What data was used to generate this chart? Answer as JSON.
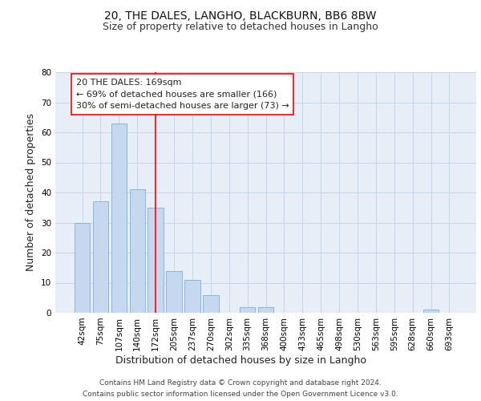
{
  "title_line1": "20, THE DALES, LANGHO, BLACKBURN, BB6 8BW",
  "title_line2": "Size of property relative to detached houses in Langho",
  "xlabel": "Distribution of detached houses by size in Langho",
  "ylabel": "Number of detached properties",
  "categories": [
    "42sqm",
    "75sqm",
    "107sqm",
    "140sqm",
    "172sqm",
    "205sqm",
    "237sqm",
    "270sqm",
    "302sqm",
    "335sqm",
    "368sqm",
    "400sqm",
    "433sqm",
    "465sqm",
    "498sqm",
    "530sqm",
    "563sqm",
    "595sqm",
    "628sqm",
    "660sqm",
    "693sqm"
  ],
  "values": [
    30,
    37,
    63,
    41,
    35,
    14,
    11,
    6,
    0,
    2,
    2,
    0,
    0,
    0,
    0,
    0,
    0,
    0,
    0,
    1,
    0
  ],
  "bar_color": "#c5d8f0",
  "bar_edge_color": "#7bafd4",
  "bar_width": 0.85,
  "ylim": [
    0,
    80
  ],
  "yticks": [
    0,
    10,
    20,
    30,
    40,
    50,
    60,
    70,
    80
  ],
  "grid_color": "#c8d4e8",
  "background_color": "#e8eef8",
  "red_line_category_index": 4,
  "annotation_box_text_line1": "20 THE DALES: 169sqm",
  "annotation_box_text_line2": "← 69% of detached houses are smaller (166)",
  "annotation_box_text_line3": "30% of semi-detached houses are larger (73) →",
  "footer_line1": "Contains HM Land Registry data © Crown copyright and database right 2024.",
  "footer_line2": "Contains public sector information licensed under the Open Government Licence v3.0.",
  "title_fontsize": 10,
  "subtitle_fontsize": 9,
  "axis_label_fontsize": 9,
  "tick_fontsize": 7.5,
  "annotation_fontsize": 8,
  "footer_fontsize": 6.5
}
